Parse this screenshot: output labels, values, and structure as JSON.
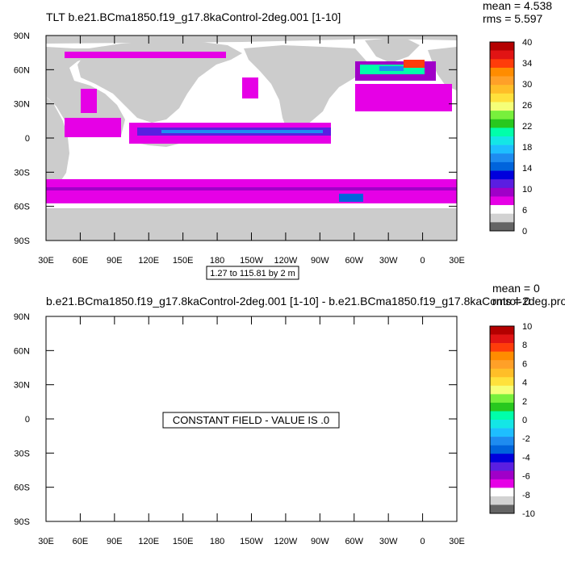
{
  "colors": {
    "land": "#cccccc",
    "frame": "#000000",
    "background": "#ffffff"
  },
  "chart_data": [
    {
      "type": "heatmap",
      "title": "TLT b.e21.BCma1850.f19_g17.8kaControl-2deg.001 [1-10]",
      "stats": {
        "mean": "mean = 4.538",
        "rms": "rms = 5.597"
      },
      "contour_info": "1.27 to 115.81 by 2 m",
      "x_ticks": [
        "30E",
        "60E",
        "90E",
        "120E",
        "150E",
        "180",
        "150W",
        "120W",
        "90W",
        "60W",
        "30W",
        "0",
        "30E"
      ],
      "y_ticks": [
        "90N",
        "60N",
        "30N",
        "0",
        "30S",
        "60S",
        "90S"
      ],
      "colorbar": {
        "labels": [
          "40",
          "34",
          "30",
          "26",
          "22",
          "18",
          "14",
          "10",
          "6",
          "0"
        ],
        "colors": [
          "#b40000",
          "#e11414",
          "#ff3c0a",
          "#ff8c00",
          "#ffa028",
          "#ffbe28",
          "#ffe13c",
          "#f5ff78",
          "#78f03c",
          "#28c81e",
          "#00ffaa",
          "#14e6e6",
          "#1ebeff",
          "#1e8cf0",
          "#0064dc",
          "#0000dc",
          "#5a1ee1",
          "#a000c8",
          "#e600e6",
          "#ffffff",
          "#d2d2d2",
          "#646464"
        ]
      }
    },
    {
      "type": "heatmap",
      "title": "b.e21.BCma1850.f19_g17.8kaControl-2deg.001 [1-10] - b.e21.BCma1850.f19_g17.8kaControl-2deg.pro",
      "stats": {
        "mean": "mean = 0",
        "rms": "rms = 0"
      },
      "annotation": "CONSTANT FIELD - VALUE IS .0",
      "x_ticks": [
        "30E",
        "60E",
        "90E",
        "120E",
        "150E",
        "180",
        "150W",
        "120W",
        "90W",
        "60W",
        "30W",
        "0",
        "30E"
      ],
      "y_ticks": [
        "90N",
        "60N",
        "30N",
        "0",
        "30S",
        "60S",
        "90S"
      ],
      "colorbar": {
        "labels": [
          "10",
          "8",
          "6",
          "4",
          "2",
          "0",
          "-2",
          "-4",
          "-6",
          "-8",
          "-10"
        ],
        "colors": [
          "#b40000",
          "#e11414",
          "#ff3c0a",
          "#ff8c00",
          "#ffa028",
          "#ffbe28",
          "#ffe13c",
          "#f5ff78",
          "#78f03c",
          "#28c81e",
          "#00ffaa",
          "#14e6e6",
          "#1ebeff",
          "#1e8cf0",
          "#0064dc",
          "#0000dc",
          "#5a1ee1",
          "#a000c8",
          "#e600e6",
          "#ffffff",
          "#d2d2d2",
          "#646464"
        ]
      }
    }
  ]
}
